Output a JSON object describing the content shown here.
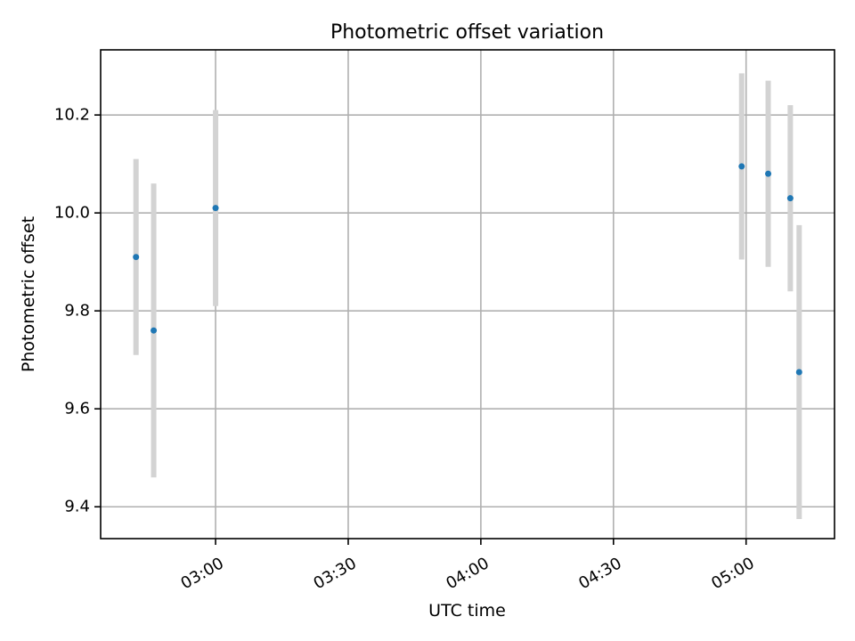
{
  "chart_data": {
    "type": "scatter",
    "title": "Photometric offset variation",
    "xlabel": "UTC time",
    "ylabel": "Photometric offset",
    "x_axis_type": "time",
    "xlim": [
      "02:34",
      "05:20"
    ],
    "ylim": [
      9.335,
      10.333
    ],
    "grid": true,
    "legend": "none",
    "x_ticks": [
      "03:00",
      "03:30",
      "04:00",
      "04:30",
      "05:00"
    ],
    "y_ticks": [
      9.4,
      9.6,
      9.8,
      10.0,
      10.2
    ],
    "y_tick_labels": [
      "9.4",
      "9.6",
      "9.8",
      "10.0",
      "10.2"
    ],
    "series": [
      {
        "color": "#1f77b4",
        "error_bar_color": "#d3d3d3",
        "points": [
          {
            "x": "02:42",
            "y": 9.91,
            "err": 0.2
          },
          {
            "x": "02:46",
            "y": 9.76,
            "err": 0.3
          },
          {
            "x": "03:00",
            "y": 10.01,
            "err": 0.2
          },
          {
            "x": "04:59",
            "y": 10.095,
            "err": 0.19
          },
          {
            "x": "05:05",
            "y": 10.08,
            "err": 0.19
          },
          {
            "x": "05:10",
            "y": 10.03,
            "err": 0.19
          },
          {
            "x": "05:12",
            "y": 9.675,
            "err": 0.3
          }
        ]
      }
    ]
  }
}
